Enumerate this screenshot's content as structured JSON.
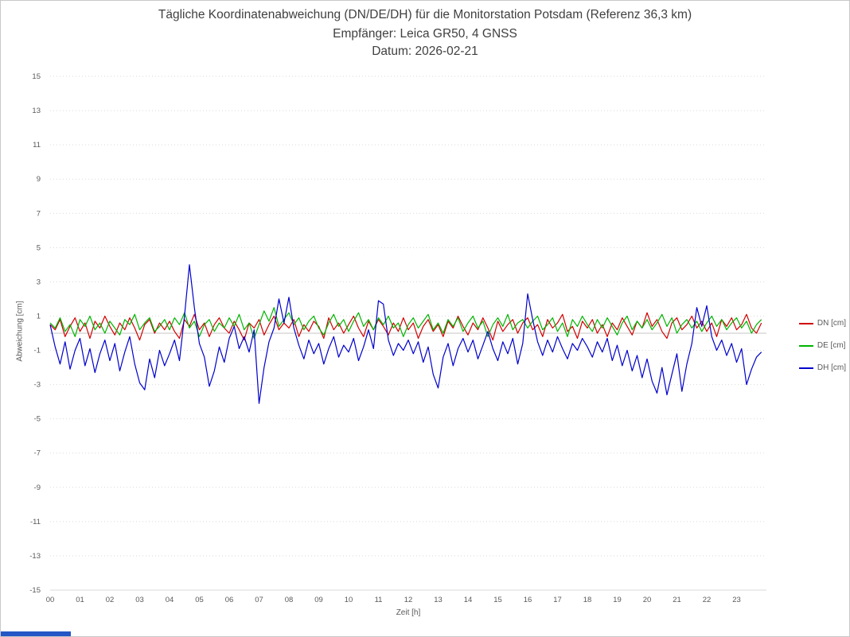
{
  "header": {
    "title_line1": "Tägliche Koordinatenabweichung (DN/DE/DH) für die Monitorstation Potsdam (Referenz 36,3 km)",
    "title_line2": "Empfänger: Leica GR50, 4 GNSS",
    "title_line3": "Datum: 2026-02-21"
  },
  "decor": {
    "bottom_strip_color": "#2457c5",
    "grid_color": "#d9d9d9",
    "tick_label_color": "#595959",
    "title_color": "#404040"
  },
  "chart_data": {
    "type": "line",
    "title": "Tägliche Koordinatenabweichung (DN/DE/DH) für die Monitorstation Potsdam (Referenz 36,3 km)",
    "subtitle": "Empfänger: Leica GR50, 4 GNSS",
    "date": "2026-02-21",
    "xlabel": "Zeit [h]",
    "ylabel": "Abweichung [cm]",
    "xlim": [
      0,
      24
    ],
    "ylim": [
      -15,
      15
    ],
    "x_ticks": [
      "00",
      "01",
      "02",
      "03",
      "04",
      "05",
      "06",
      "07",
      "08",
      "09",
      "10",
      "11",
      "12",
      "13",
      "14",
      "15",
      "16",
      "17",
      "18",
      "19",
      "20",
      "21",
      "22",
      "23"
    ],
    "y_ticks": [
      -15,
      -13,
      -11,
      -9,
      -7,
      -5,
      -3,
      -1,
      1,
      3,
      5,
      7,
      9,
      11,
      13,
      15
    ],
    "grid": "horizontal-dashed",
    "legend_position": "right",
    "sample_minutes": 10,
    "series": [
      {
        "name": "DN [cm]",
        "color": "#d00000",
        "values": [
          0.5,
          0.2,
          0.8,
          -0.2,
          0.4,
          0.9,
          0.1,
          0.6,
          -0.3,
          0.7,
          0.3,
          1.0,
          0.4,
          -0.1,
          0.6,
          0.2,
          0.9,
          0.3,
          -0.4,
          0.5,
          0.8,
          0.0,
          0.6,
          0.2,
          0.7,
          0.1,
          -0.3,
          0.8,
          0.4,
          1.1,
          0.2,
          0.6,
          -0.2,
          0.5,
          0.9,
          0.3,
          0.0,
          0.7,
          0.2,
          -0.4,
          0.6,
          0.3,
          0.8,
          -0.1,
          0.5,
          1.0,
          0.2,
          0.6,
          0.3,
          0.8,
          -0.2,
          0.5,
          0.1,
          0.7,
          0.4,
          -0.3,
          0.9,
          0.2,
          0.6,
          0.0,
          0.5,
          1.0,
          0.3,
          -0.2,
          0.7,
          0.2,
          0.8,
          0.4,
          -0.1,
          0.6,
          0.1,
          0.9,
          0.2,
          0.6,
          -0.3,
          0.4,
          0.8,
          0.1,
          0.5,
          -0.2,
          0.7,
          0.3,
          1.0,
          0.4,
          -0.1,
          0.6,
          0.2,
          0.9,
          0.3,
          -0.4,
          0.7,
          0.1,
          0.5,
          0.8,
          0.0,
          0.6,
          0.9,
          0.2,
          0.5,
          -0.2,
          0.8,
          0.3,
          0.6,
          1.1,
          0.1,
          0.4,
          -0.3,
          0.7,
          0.3,
          0.8,
          0.0,
          0.5,
          -0.2,
          0.6,
          0.2,
          0.9,
          0.4,
          -0.1,
          0.7,
          0.3,
          1.2,
          0.4,
          0.8,
          0.1,
          -0.3,
          0.6,
          0.9,
          0.2,
          0.5,
          1.0,
          0.3,
          0.7,
          0.1,
          0.6,
          -0.2,
          0.8,
          0.4,
          0.9,
          0.2,
          0.5,
          1.1,
          0.3,
          0.0,
          0.6
        ]
      },
      {
        "name": "DE [cm]",
        "color": "#00b400",
        "values": [
          0.6,
          0.3,
          0.9,
          0.1,
          0.5,
          -0.2,
          0.8,
          0.4,
          1.0,
          0.2,
          0.6,
          0.0,
          0.7,
          0.3,
          -0.1,
          0.8,
          0.5,
          1.1,
          0.2,
          0.6,
          0.9,
          0.1,
          0.4,
          0.8,
          0.2,
          0.9,
          0.5,
          1.2,
          0.3,
          0.7,
          -0.2,
          0.5,
          0.8,
          0.1,
          0.6,
          0.3,
          0.9,
          0.4,
          1.1,
          0.2,
          0.6,
          -0.3,
          0.5,
          1.3,
          0.7,
          1.5,
          0.4,
          0.8,
          1.2,
          0.5,
          0.9,
          0.2,
          0.7,
          1.0,
          0.3,
          -0.1,
          0.6,
          1.1,
          0.4,
          0.8,
          0.1,
          0.7,
          1.2,
          0.4,
          0.8,
          0.2,
          0.9,
          0.5,
          1.0,
          0.3,
          0.6,
          -0.2,
          0.5,
          0.9,
          0.3,
          0.7,
          1.1,
          0.2,
          0.6,
          0.0,
          0.8,
          0.4,
          0.9,
          0.1,
          0.6,
          1.0,
          0.3,
          0.7,
          -0.2,
          0.5,
          0.9,
          0.4,
          1.1,
          0.2,
          0.6,
          0.8,
          0.3,
          0.7,
          1.0,
          0.2,
          0.5,
          0.9,
          0.1,
          0.6,
          -0.2,
          0.8,
          0.4,
          1.0,
          0.5,
          0.1,
          0.8,
          0.3,
          0.9,
          0.4,
          -0.1,
          0.6,
          1.0,
          0.2,
          0.7,
          0.3,
          0.8,
          0.2,
          0.6,
          1.1,
          0.4,
          0.9,
          0.0,
          0.5,
          0.8,
          0.3,
          0.7,
          0.1,
          0.6,
          1.0,
          0.4,
          0.8,
          0.2,
          0.6,
          0.9,
          0.3,
          0.7,
          0.0,
          0.5,
          0.8
        ]
      },
      {
        "name": "DH [cm]",
        "color": "#0000cc",
        "values": [
          0.5,
          -0.8,
          -1.8,
          -0.5,
          -2.1,
          -1.0,
          -0.3,
          -1.9,
          -0.9,
          -2.3,
          -1.2,
          -0.4,
          -1.6,
          -0.6,
          -2.2,
          -1.1,
          -0.2,
          -1.8,
          -2.9,
          -3.3,
          -1.5,
          -2.6,
          -1.0,
          -1.9,
          -1.2,
          -0.4,
          -1.6,
          1.0,
          4.0,
          1.5,
          -0.6,
          -1.4,
          -3.1,
          -2.2,
          -0.8,
          -1.7,
          -0.3,
          0.4,
          -0.9,
          -0.2,
          -1.1,
          0.2,
          -4.1,
          -2.0,
          -0.5,
          0.3,
          2.0,
          0.6,
          2.1,
          0.3,
          -0.7,
          -1.5,
          -0.4,
          -1.2,
          -0.6,
          -1.8,
          -0.9,
          -0.2,
          -1.4,
          -0.7,
          -1.1,
          -0.3,
          -1.6,
          -0.8,
          0.2,
          -0.9,
          1.9,
          1.7,
          -0.4,
          -1.3,
          -0.6,
          -1.0,
          -0.4,
          -1.2,
          -0.5,
          -1.7,
          -0.8,
          -2.4,
          -3.2,
          -1.4,
          -0.6,
          -1.9,
          -0.9,
          -0.3,
          -1.1,
          -0.4,
          -1.5,
          -0.7,
          0.1,
          -0.9,
          -1.6,
          -0.5,
          -1.2,
          -0.3,
          -1.8,
          -0.6,
          2.3,
          0.8,
          -0.5,
          -1.3,
          -0.4,
          -1.1,
          -0.2,
          -0.9,
          -1.5,
          -0.6,
          -1.0,
          -0.3,
          -0.8,
          -1.4,
          -0.5,
          -1.1,
          -0.3,
          -1.6,
          -0.7,
          -1.9,
          -1.0,
          -2.2,
          -1.3,
          -2.6,
          -1.5,
          -2.8,
          -3.5,
          -2.0,
          -3.6,
          -2.4,
          -1.2,
          -3.4,
          -1.8,
          -0.6,
          1.5,
          0.4,
          1.6,
          -0.2,
          -1.0,
          -0.4,
          -1.3,
          -0.6,
          -1.7,
          -0.9,
          -3.0,
          -2.1,
          -1.4,
          -1.1
        ]
      }
    ]
  }
}
